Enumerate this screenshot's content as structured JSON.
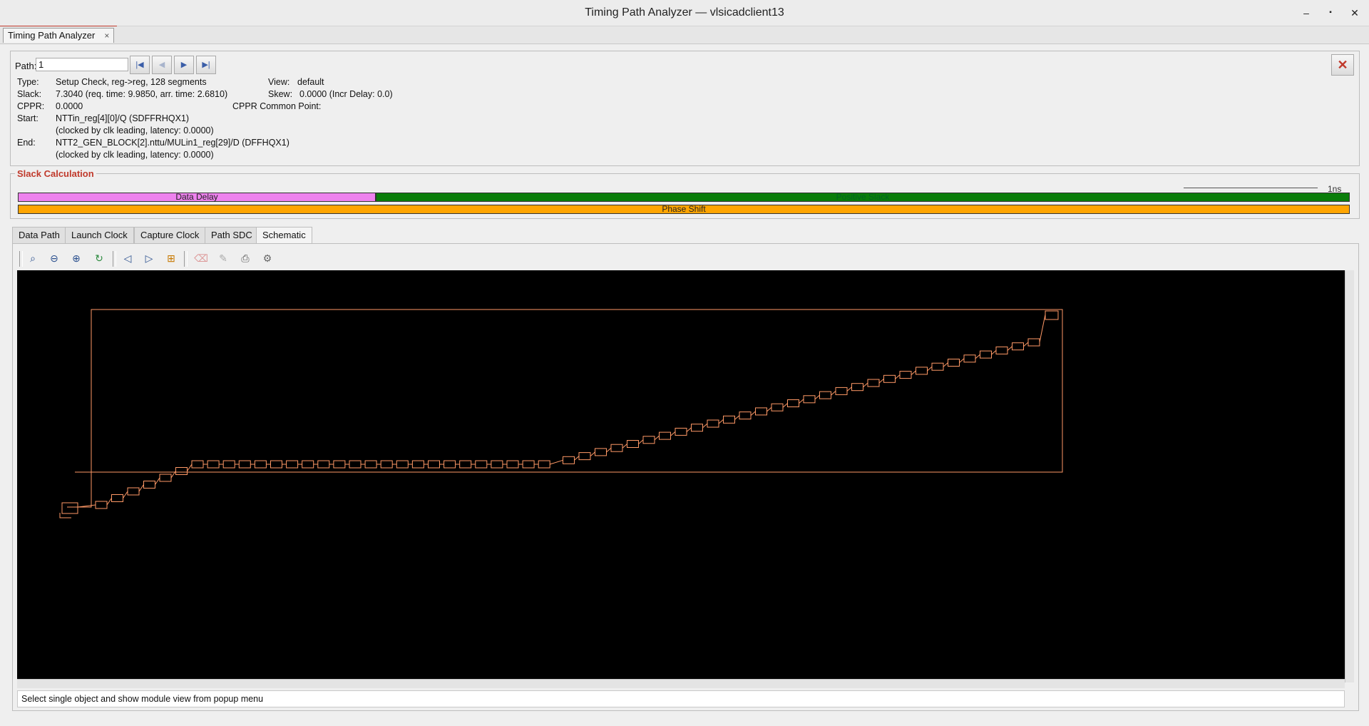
{
  "window": {
    "title": "Timing Path Analyzer — vlsicadclient13",
    "minimize": "–",
    "maximize": "▪",
    "close": "✕"
  },
  "doc_tab": {
    "label": "Timing Path Analyzer",
    "close": "×"
  },
  "path": {
    "label": "Path:",
    "value": "1",
    "nav": [
      "first-icon",
      "prev-icon",
      "next-icon",
      "last-icon"
    ]
  },
  "info": {
    "type_label": "Type:",
    "type_value": "Setup Check, reg->reg, 128 segments",
    "slack_label": "Slack:",
    "slack_value": "7.3040 (req. time: 9.9850, arr. time: 2.6810)",
    "cppr_label": "CPPR:",
    "cppr_value": "0.0000",
    "start_label": "Start:",
    "start_value": "NTTin_reg[4][0]/Q  (SDFFRHQX1)",
    "start_clock": "(clocked by clk leading, latency: 0.0000)",
    "end_label": "End:",
    "end_value": "NTT2_GEN_BLOCK[2].nttu/MULin1_reg[29]/D  (DFFHQX1)",
    "end_clock": "(clocked by clk leading, latency: 0.0000)",
    "view_label": "View:",
    "view_value": "default",
    "skew_label": "Skew:",
    "skew_value": "0.0000 (Incr Delay: 0.0)",
    "cppr_common_label": "CPPR Common Point:"
  },
  "slack_calc": {
    "title": "Slack Calculation",
    "scale_label": "1ns",
    "data_delay_label": "Data Delay",
    "positive_slack_label": "Positive Slack",
    "phase_shift_label": "Phase Shift",
    "data_delay": 2.681,
    "positive_slack": 7.304,
    "colors": {
      "data_delay": "#ee82ee",
      "positive_slack": "#0a7d0a",
      "phase_shift": "#ffa500"
    }
  },
  "tabs": [
    "Data Path",
    "Launch Clock",
    "Capture Clock",
    "Path SDC",
    "Schematic"
  ],
  "active_tab": "Schematic",
  "schematic": {
    "wire_color": "#ff9966",
    "background": "#000000",
    "toolbar": [
      "zoom-icon",
      "zoom-out-icon",
      "zoom-fit-icon",
      "refresh-icon",
      "back-icon",
      "forward-icon",
      "hierarchy-icon",
      "eraser-icon",
      "edit-icon",
      "print-icon",
      "settings-icon"
    ]
  },
  "status": "Select single object and show module view from popup menu"
}
